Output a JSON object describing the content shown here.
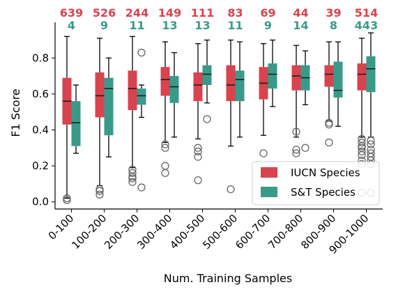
{
  "chart_data": {
    "type": "box",
    "xlabel": "Num. Training Samples",
    "ylabel": "F1 Score",
    "ylim": [
      -0.04,
      0.96
    ],
    "yticks": [
      "0.0",
      "0.2",
      "0.4",
      "0.6",
      "0.8"
    ],
    "grid": false,
    "legend_position": "bottom-right",
    "categories": [
      "0-100",
      "100-200",
      "200-300",
      "300-400",
      "400-500",
      "500-600",
      "600-700",
      "700-800",
      "800-900",
      "900-1000"
    ],
    "series": [
      {
        "name": "IUCN Species",
        "color": "#d9434e",
        "counts": [
          "639",
          "526",
          "244",
          "149",
          "111",
          "83",
          "69",
          "44",
          "39",
          "514"
        ],
        "boxes": [
          {
            "whislo": 0.02,
            "q1": 0.43,
            "med": 0.56,
            "q3": 0.69,
            "whishi": 0.92,
            "fliers": [
              0.02,
              0.01
            ]
          },
          {
            "whislo": 0.09,
            "q1": 0.47,
            "med": 0.59,
            "q3": 0.72,
            "whishi": 0.91,
            "fliers": [
              0.07,
              0.06,
              0.04
            ]
          },
          {
            "whislo": 0.19,
            "q1": 0.51,
            "med": 0.63,
            "q3": 0.73,
            "whishi": 0.92,
            "fliers": [
              0.18,
              0.16,
              0.14,
              0.13,
              0.11
            ]
          },
          {
            "whislo": 0.33,
            "q1": 0.59,
            "med": 0.68,
            "q3": 0.75,
            "whishi": 0.89,
            "fliers": [
              0.32,
              0.3,
              0.2,
              0.16
            ]
          },
          {
            "whislo": 0.35,
            "q1": 0.56,
            "med": 0.65,
            "q3": 0.72,
            "whishi": 0.88,
            "fliers": [
              0.3,
              0.28,
              0.25,
              0.12
            ]
          },
          {
            "whislo": 0.31,
            "q1": 0.56,
            "med": 0.65,
            "q3": 0.76,
            "whishi": 0.9,
            "fliers": [
              0.07
            ]
          },
          {
            "whislo": 0.37,
            "q1": 0.57,
            "med": 0.66,
            "q3": 0.75,
            "whishi": 0.88,
            "fliers": [
              0.27
            ]
          },
          {
            "whislo": 0.36,
            "q1": 0.62,
            "med": 0.7,
            "q3": 0.76,
            "whishi": 0.87,
            "fliers": [
              0.39,
              0.29,
              0.27
            ]
          },
          {
            "whislo": 0.45,
            "q1": 0.64,
            "med": 0.71,
            "q3": 0.76,
            "whishi": 0.89,
            "fliers": [
              0.44,
              0.43,
              0.33
            ]
          },
          {
            "whislo": 0.36,
            "q1": 0.62,
            "med": 0.71,
            "q3": 0.77,
            "whishi": 0.91,
            "fliers": [
              0.35,
              0.33,
              0.31,
              0.3,
              0.28,
              0.26,
              0.23,
              0.21,
              0.05
            ]
          }
        ]
      },
      {
        "name": "S&T Species",
        "color": "#3a9a8a",
        "counts": [
          "4",
          "9",
          "11",
          "13",
          "13",
          "11",
          "9",
          "14",
          "8",
          "443"
        ],
        "boxes": [
          {
            "whislo": 0.27,
            "q1": 0.31,
            "med": 0.44,
            "q3": 0.56,
            "whishi": 0.65,
            "fliers": []
          },
          {
            "whislo": 0.25,
            "q1": 0.37,
            "med": 0.63,
            "q3": 0.69,
            "whishi": 0.8,
            "fliers": []
          },
          {
            "whislo": 0.47,
            "q1": 0.54,
            "med": 0.59,
            "q3": 0.63,
            "whishi": 0.65,
            "fliers": [
              0.83,
              0.08
            ]
          },
          {
            "whislo": 0.36,
            "q1": 0.55,
            "med": 0.64,
            "q3": 0.7,
            "whishi": 0.83,
            "fliers": []
          },
          {
            "whislo": 0.55,
            "q1": 0.65,
            "med": 0.71,
            "q3": 0.76,
            "whishi": 0.9,
            "fliers": [
              0.46
            ]
          },
          {
            "whislo": 0.36,
            "q1": 0.56,
            "med": 0.68,
            "q3": 0.73,
            "whishi": 0.89,
            "fliers": []
          },
          {
            "whislo": 0.53,
            "q1": 0.63,
            "med": 0.71,
            "q3": 0.77,
            "whishi": 0.9,
            "fliers": []
          },
          {
            "whislo": 0.54,
            "q1": 0.62,
            "med": 0.69,
            "q3": 0.76,
            "whishi": 0.84,
            "fliers": [
              0.3
            ]
          },
          {
            "whislo": 0.42,
            "q1": 0.58,
            "med": 0.62,
            "q3": 0.78,
            "whishi": 0.89,
            "fliers": []
          },
          {
            "whislo": 0.36,
            "q1": 0.61,
            "med": 0.74,
            "q3": 0.81,
            "whishi": 0.94,
            "fliers": [
              0.34,
              0.32,
              0.29,
              0.27,
              0.25,
              0.23,
              0.21,
              0.05
            ]
          }
        ]
      }
    ]
  }
}
